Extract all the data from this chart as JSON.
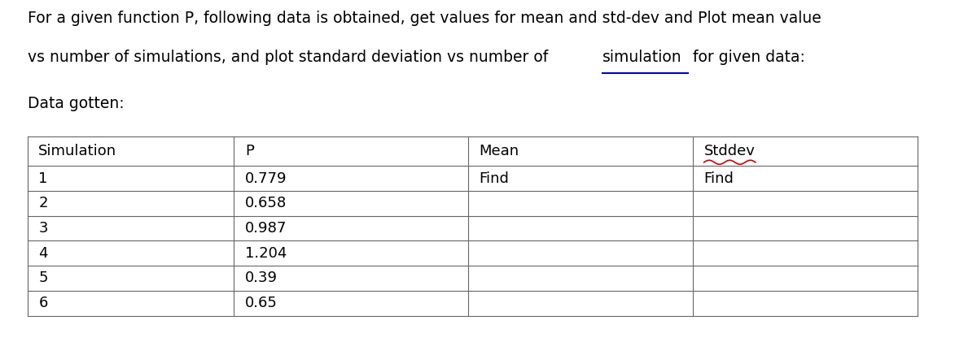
{
  "title_line1": "For a given function P, following data is obtained, get values for mean and std-dev and Plot mean value",
  "title_line2_part1": "vs number of simulations, and plot standard deviation vs number of ",
  "title_line2_underlined": "simulation",
  "title_line2_part3": " for given data:",
  "subtitle": "Data gotten:",
  "headers": [
    "Simulation",
    "P",
    "Mean",
    "Stddev"
  ],
  "rows": [
    [
      "1",
      "0.779",
      "Find",
      "Find"
    ],
    [
      "2",
      "0.658",
      "",
      ""
    ],
    [
      "3",
      "0.987",
      "",
      ""
    ],
    [
      "4",
      "1.204",
      "",
      ""
    ],
    [
      "5",
      "0.39",
      "",
      ""
    ],
    [
      "6",
      "0.65",
      "",
      ""
    ]
  ],
  "bg_color": "#ffffff",
  "text_color": "#000000",
  "line_color": "#666666",
  "stddev_underline_color": "#cc0000",
  "simulation_underline_color": "#0000cc",
  "font_size_title": 13.5,
  "font_size_table": 13.0,
  "font_size_subtitle": 13.5
}
